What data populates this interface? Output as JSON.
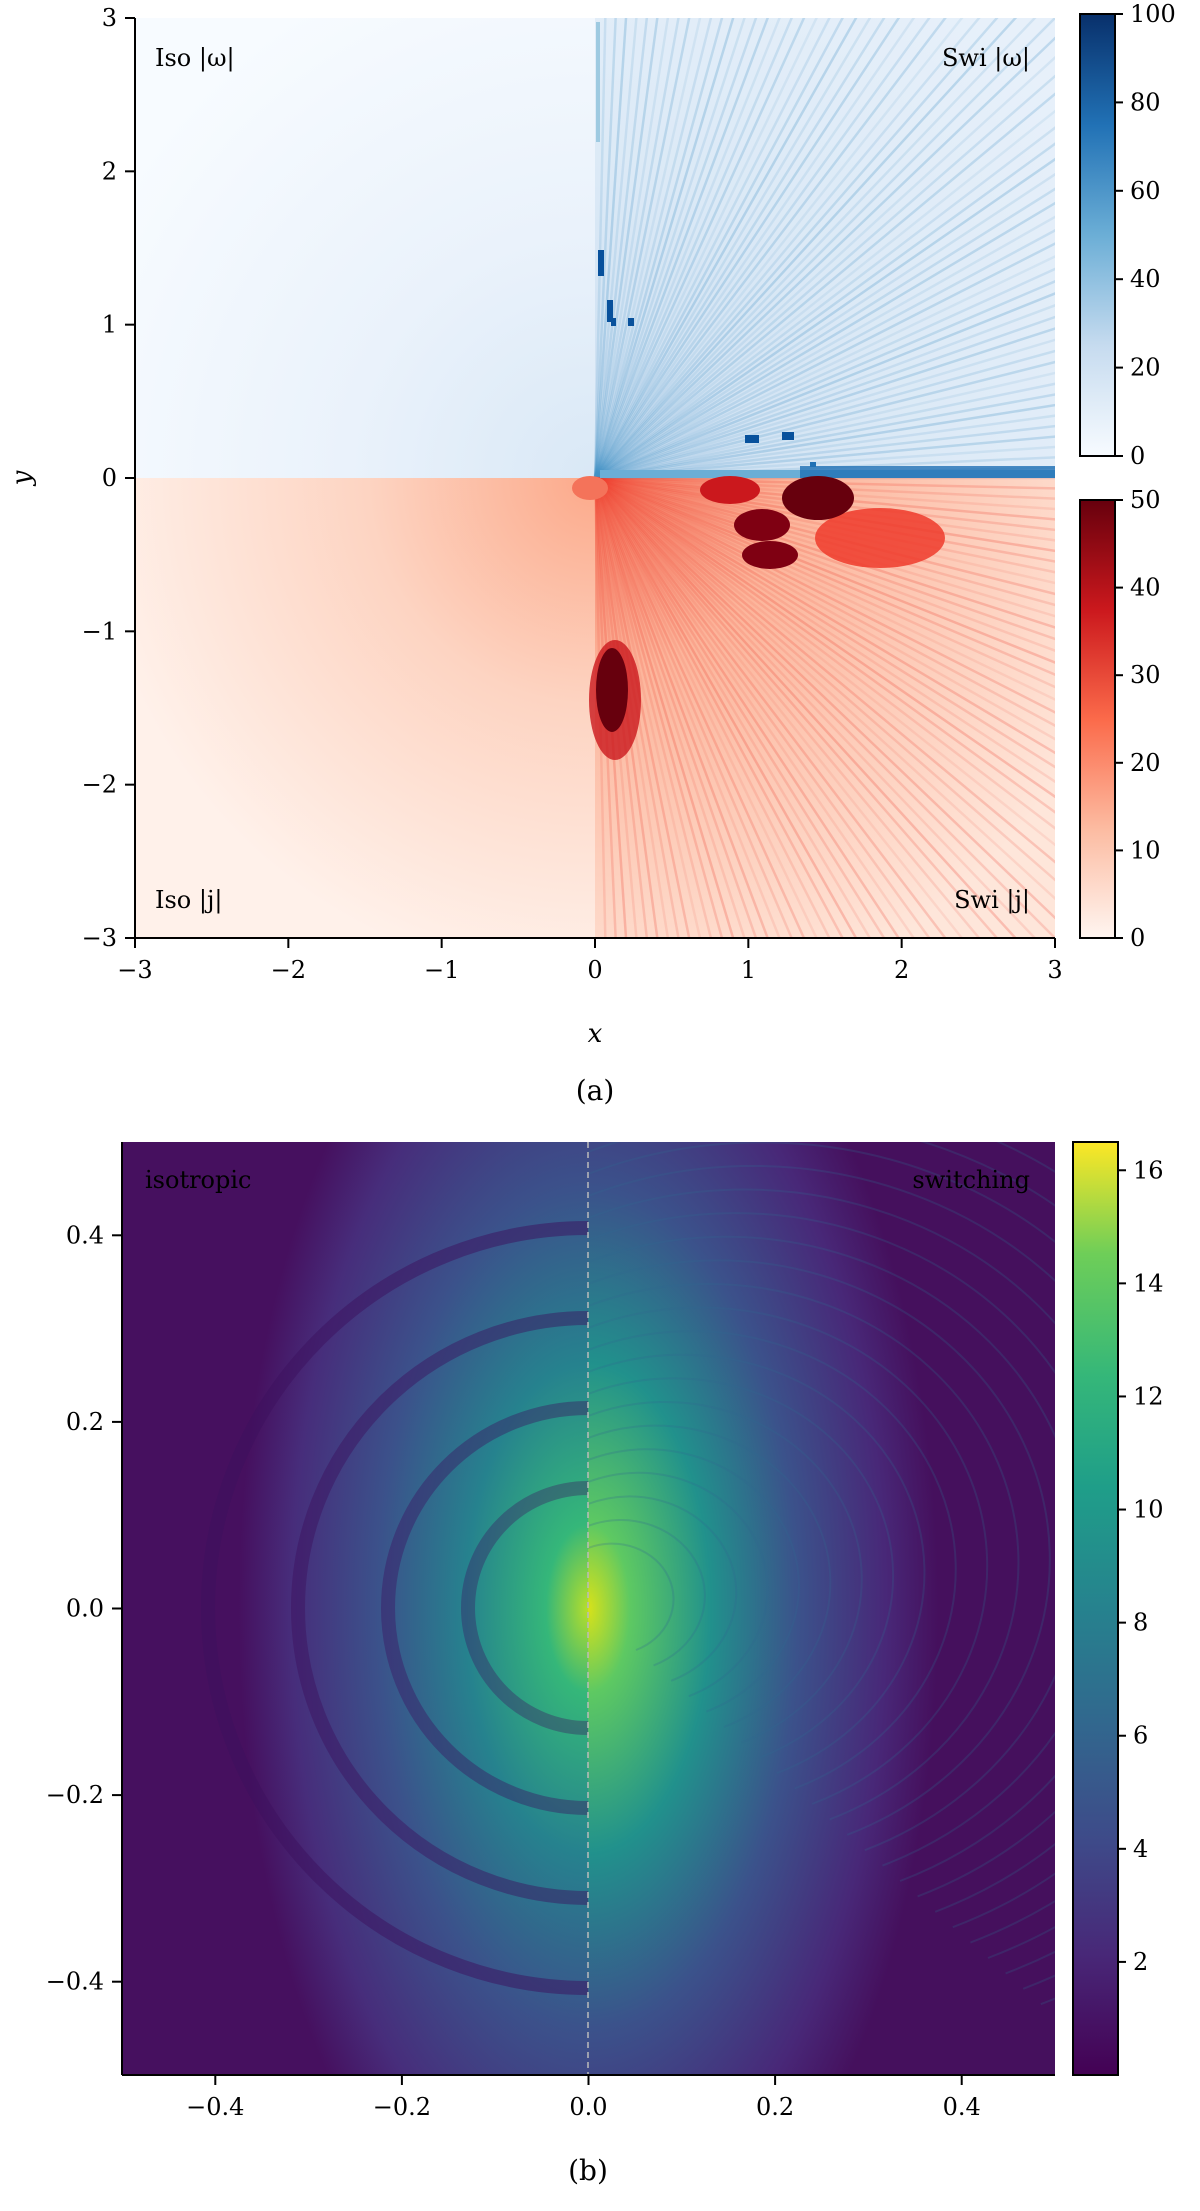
{
  "panel_a": {
    "caption": "(a)",
    "xlabel": "x",
    "ylabel": "y",
    "xticks": [
      "−3",
      "−2",
      "−1",
      "0",
      "1",
      "2",
      "3"
    ],
    "yticks": [
      "3",
      "2",
      "1",
      "0",
      "−1",
      "−2",
      "−3"
    ],
    "quadrant_labels": {
      "top_left": "Iso |ω|",
      "top_right": "Swi |ω|",
      "bottom_left": "Iso |j|",
      "bottom_right": "Swi |j|"
    },
    "colorbar_blue_ticks": [
      "100",
      "80",
      "60",
      "40",
      "20",
      "0"
    ],
    "colorbar_red_ticks": [
      "50",
      "40",
      "30",
      "20",
      "10",
      "0"
    ]
  },
  "panel_b": {
    "caption": "(b)",
    "left_label": "isotropic",
    "right_label": "switching",
    "xticks": [
      "−0.4",
      "−0.2",
      "0.0",
      "0.2",
      "0.4"
    ],
    "yticks": [
      "0.4",
      "0.2",
      "0.0",
      "−0.2",
      "−0.4"
    ],
    "colorbar_ticks": [
      "16",
      "14",
      "12",
      "10",
      "8",
      "6",
      "4",
      "2"
    ]
  },
  "chart_data": [
    {
      "type": "heatmap",
      "name": "(a)",
      "xlabel": "x",
      "ylabel": "y",
      "xlim": [
        -3,
        3
      ],
      "ylim": [
        -3,
        3
      ],
      "quadrants": {
        "top_left": "Iso |ω|",
        "top_right": "Swi |ω|",
        "bottom_left": "Iso |j|",
        "bottom_right": "Swi |j|"
      },
      "colorbars": [
        {
          "for": "|ω|",
          "colormap": "Blues",
          "range": [
            0,
            100
          ],
          "ticks": [
            0,
            20,
            40,
            60,
            80,
            100
          ]
        },
        {
          "for": "|j|",
          "colormap": "Reds",
          "range": [
            0,
            50
          ],
          "ticks": [
            0,
            10,
            20,
            30,
            40,
            50
          ]
        }
      ],
      "grid": false
    },
    {
      "type": "heatmap",
      "name": "(b)",
      "xlim": [
        -0.5,
        0.5
      ],
      "ylim": [
        -0.5,
        0.5
      ],
      "split": "x = 0 (dashed line)",
      "halves": {
        "left": "isotropic",
        "right": "switching"
      },
      "colorbar": {
        "colormap": "viridis",
        "range": [
          0,
          16.5
        ],
        "ticks": [
          2,
          4,
          6,
          8,
          10,
          12,
          14,
          16
        ]
      },
      "grid": false
    }
  ],
  "colors": {
    "blue_low": "#f7fbff",
    "blue_high": "#08306b",
    "red_low": "#fff5f0",
    "red_high": "#67000d",
    "viridis_low": "#440154",
    "viridis_mid": "#21918c",
    "viridis_high": "#fde725"
  }
}
